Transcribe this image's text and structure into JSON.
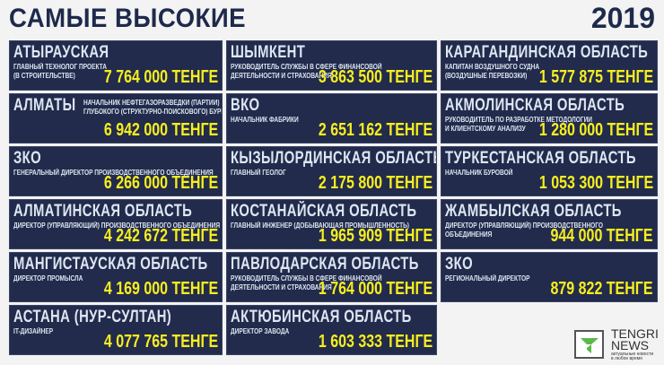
{
  "header": {
    "title": "САМЫЕ ВЫСОКИЕ",
    "year": "2019"
  },
  "cards": [
    {
      "region": "АТЫРАУСКАЯ",
      "job": "ГЛАВНЫЙ ТЕХНОЛОГ ПРОЕКТА\n(В СТРОИТЕЛЬСТВЕ)",
      "amount": "7 764 000 ТЕНГЕ"
    },
    {
      "region": "АЛМАТЫ",
      "job": "НАЧАЛЬНИК НЕФТЕГАЗОРАЗВЕДКИ (ПАРТИИ)\nГЛУБОКОГО (СТРУКТУРНО-ПОИСКОВОГО) БУРЕНИЯ",
      "amount": "6 942 000 ТЕНГЕ"
    },
    {
      "region": "ЗКО",
      "job": "ГЕНЕРАЛЬНЫЙ ДИРЕКТОР ПРОИЗВОДСТВЕННОГО ОБЪЕДИНЕНИЯ",
      "amount": "6 266 000 ТЕНГЕ"
    },
    {
      "region": "АЛМАТИНСКАЯ  ОБЛАСТЬ",
      "job": "ДИРЕКТОР (УПРАВЛЯЮЩИЙ) ПРОИЗВОДСТВЕННОГО ОБЪЕДИНЕНИЯ",
      "amount": "4 242 672 ТЕНГЕ"
    },
    {
      "region": "МАНГИСТАУСКАЯ  ОБЛАСТЬ",
      "job": "ДИРЕКТОР ПРОМЫСЛА",
      "amount": "4 169 000 ТЕНГЕ"
    },
    {
      "region": "АСТАНА (НУР-СУЛТАН)",
      "job": "IT-ДИЗАЙНЕР",
      "amount": "4 077 765 ТЕНГЕ"
    },
    {
      "region": "ШЫМКЕНТ",
      "job": "РУКОВОДИТЕЛЬ СЛУЖБЫ В СФЕРЕ ФИНАНСОВОЙ\nДЕЯТЕЛЬНОСТИ И СТРАХОВАНИЯ",
      "amount": "3 863 500 ТЕНГЕ"
    },
    {
      "region": "ВКО",
      "job": "НАЧАЛЬНИК ФАБРИКИ",
      "amount": "2 651 162 ТЕНГЕ"
    },
    {
      "region": "КЫЗЫЛОРДИНСКАЯ  ОБЛАСТЬ",
      "job": "ГЛАВНЫЙ ГЕОЛОГ",
      "amount": "2 175 800 ТЕНГЕ"
    },
    {
      "region": "КОСТАНАЙСКАЯ  ОБЛАСТЬ",
      "job": "ГЛАВНЫЙ ИНЖЕНЕР (ДОБЫВАЮЩАЯ ПРОМЫШЛЕННОСТЬ)",
      "amount": "1 965 909 ТЕНГЕ"
    },
    {
      "region": "ПАВЛОДАРСКАЯ  ОБЛАСТЬ",
      "job": "РУКОВОДИТЕЛЬ СЛУЖБЫ В СФЕРЕ ФИНАНСОВОЙ\nДЕЯТЕЛЬНОСТИ И СТРАХОВАНИЯ",
      "amount": "1 764 000 ТЕНГЕ"
    },
    {
      "region": "АКТЮБИНСКАЯ  ОБЛАСТЬ",
      "job": "ДИРЕКТОР ЗАВОДА",
      "amount": "1 603 333 ТЕНГЕ"
    },
    {
      "region": "КАРАГАНДИНСКАЯ  ОБЛАСТЬ",
      "job": "КАПИТАН ВОЗДУШНОГО СУДНА\n(ВОЗДУШНЫЕ ПЕРЕВОЗКИ)",
      "amount": "1 577 875 ТЕНГЕ"
    },
    {
      "region": "АКМОЛИНСКАЯ  ОБЛАСТЬ",
      "job": "РУКОВОДИТЕЛЬ ПО РАЗРАБОТКЕ МЕТОДОЛОГИИ\nИ КЛИЕНТСКОМУ АНАЛИЗУ",
      "amount": "1 280 000 ТЕНГЕ"
    },
    {
      "region": "ТУРКЕСТАНСКАЯ  ОБЛАСТЬ",
      "job": "НАЧАЛЬНИК БУРОВОЙ",
      "amount": "1 053 300 ТЕНГЕ"
    },
    {
      "region": "ЖАМБЫЛСКАЯ  ОБЛАСТЬ",
      "job": "ДИРЕКТОР (УПРАВЛЯЮЩИЙ) ПРОИЗВОДСТВЕННОГО\nОБЪЕДИНЕНИЯ",
      "amount": "944 000 ТЕНГЕ"
    },
    {
      "region": "ЗКО",
      "job": "РЕГИОНАЛЬНЫЙ ДИРЕКТОР",
      "amount": "879 822 ТЕНГЕ"
    }
  ],
  "logo": {
    "brand": "TENGRI\nNEWS",
    "tagline": "актуальные новости\nв любое время"
  },
  "colors": {
    "card": "#222b4b",
    "amount": "#f7ee1f",
    "text": "#dde6f2",
    "logo_green": "#5bb84a"
  }
}
